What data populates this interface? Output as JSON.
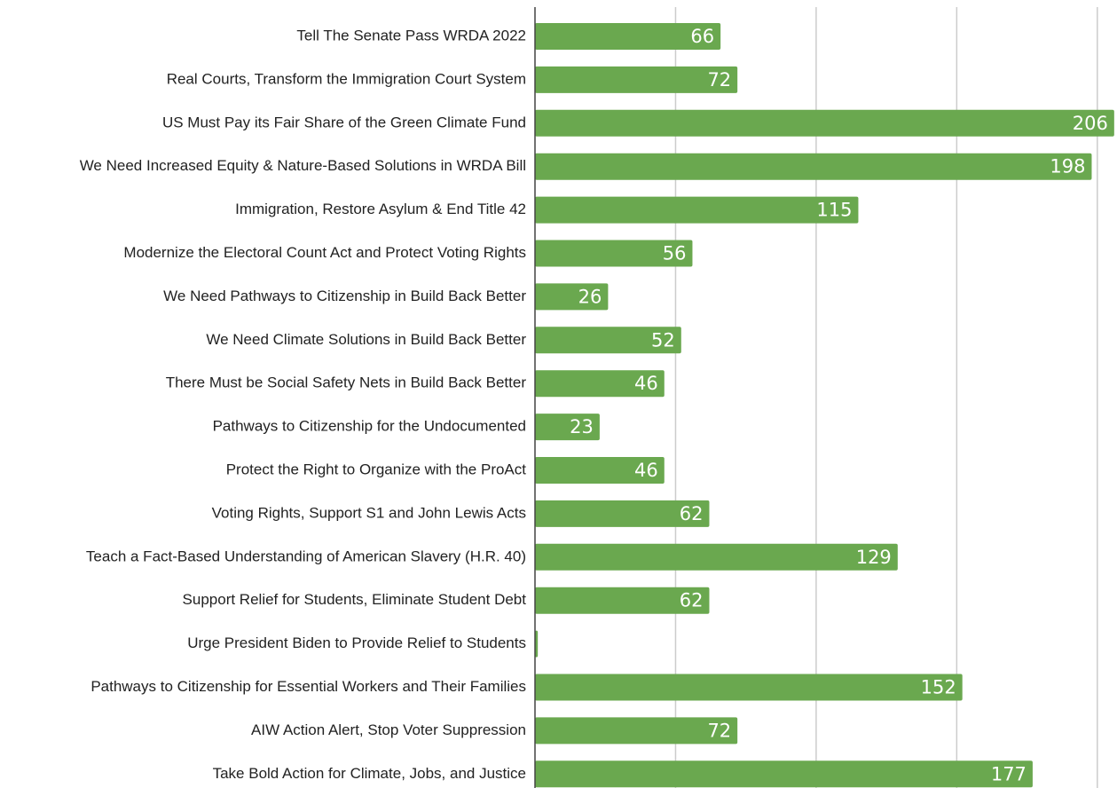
{
  "chart_data": {
    "type": "barh",
    "categories": [
      "Tell The Senate Pass WRDA 2022",
      "Real Courts, Transform the Immigration Court System",
      "US Must Pay its Fair Share of the Green Climate Fund",
      "We Need Increased Equity & Nature-Based Solutions in WRDA Bill",
      "Immigration, Restore Asylum & End Title 42",
      "Modernize the Electoral Count Act and Protect Voting Rights",
      "We Need Pathways to Citizenship in Build Back Better",
      "We Need Climate Solutions in Build Back Better",
      "There Must be Social Safety Nets in Build Back Better",
      "Pathways to Citizenship for the Undocumented",
      "Protect the Right to Organize with the ProAct",
      "Voting Rights, Support S1 and John Lewis Acts",
      "Teach a Fact-Based Understanding of American Slavery (H.R. 40)",
      "Support Relief for Students, Eliminate Student Debt",
      "Urge President Biden to Provide Relief to Students",
      "Pathways to Citizenship for Essential Workers and Their Families",
      "AIW Action Alert, Stop Voter Suppression",
      "Take Bold Action for Climate, Jobs, and Justice"
    ],
    "values": [
      66,
      72,
      206,
      198,
      115,
      56,
      26,
      52,
      46,
      23,
      46,
      62,
      129,
      62,
      1,
      152,
      72,
      177
    ],
    "value_labels": [
      "66",
      "72",
      "206",
      "198",
      "115",
      "56",
      "26",
      "52",
      "46",
      "23",
      "46",
      "62",
      "129",
      "62",
      null,
      "152",
      "72",
      "177"
    ],
    "color": "#6aa84f",
    "xlim": [
      0,
      207
    ],
    "xticks": [
      0,
      50,
      100,
      150,
      200
    ],
    "grid": true
  }
}
